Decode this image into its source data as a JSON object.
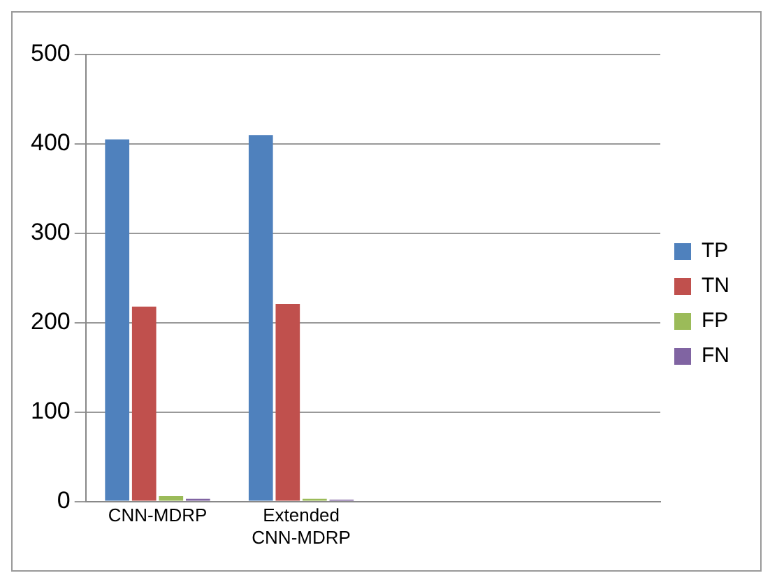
{
  "chart_data": {
    "type": "bar",
    "categories": [
      "CNN-MDRP",
      "Extended CNN-MDRP",
      null,
      null
    ],
    "series": [
      {
        "name": "TP",
        "color": "#4f81bd",
        "values": [
          405,
          410,
          null,
          null
        ]
      },
      {
        "name": "TN",
        "color": "#c0504d",
        "values": [
          218,
          221,
          null,
          null
        ]
      },
      {
        "name": "FP",
        "color": "#9bbb59",
        "values": [
          6,
          3,
          null,
          null
        ]
      },
      {
        "name": "FN",
        "color": "#8064a2",
        "values": [
          3,
          2,
          null,
          null
        ]
      }
    ],
    "ylim": [
      0,
      500
    ],
    "yticks": [
      0,
      100,
      200,
      300,
      400,
      500
    ],
    "grid": "y",
    "legend": "right"
  }
}
